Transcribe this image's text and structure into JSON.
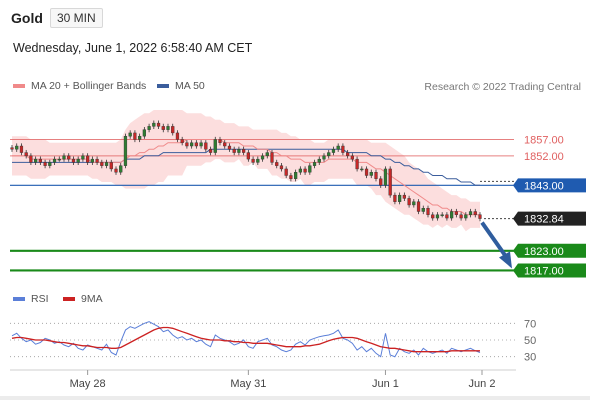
{
  "header": {
    "symbol": "Gold",
    "timeframe": "30 MIN",
    "timestamp": "Wednesday, June 1, 2022 6:58:40 AM CET"
  },
  "legend": {
    "ma20_label": "MA 20 + Bollinger Bands",
    "ma50_label": "MA 50",
    "ma20_color": "#f08a8a",
    "ma50_color": "#3b5d9c",
    "research": "Research © 2022 Trading Central"
  },
  "rsi_legend": {
    "rsi_label": "RSI",
    "ma9_label": "9MA",
    "rsi_color": "#5b7fd8",
    "ma9_color": "#cc2222"
  },
  "chart_data": [
    {
      "type": "candlestick",
      "title": "Gold",
      "x_labels": [
        "May 28",
        "May 31",
        "Jun 1",
        "Jun 2"
      ],
      "price_levels": [
        {
          "value": 1857.0,
          "label": "1857.00",
          "kind": "resistance",
          "color": "#e06060"
        },
        {
          "value": 1852.0,
          "label": "1852.00",
          "kind": "resistance",
          "color": "#e06060"
        },
        {
          "value": 1843.0,
          "label": "1843.00",
          "kind": "pivot",
          "color": "#1f5bb0"
        },
        {
          "value": 1832.84,
          "label": "1832.84",
          "kind": "last",
          "color": "#222222"
        },
        {
          "value": 1823.0,
          "label": "1823.00",
          "kind": "support",
          "color": "#1a8a1a"
        },
        {
          "value": 1817.0,
          "label": "1817.00",
          "kind": "support",
          "color": "#1a8a1a"
        }
      ],
      "close": [
        1854,
        1855,
        1853,
        1852,
        1850,
        1851,
        1850,
        1849,
        1850,
        1851,
        1851,
        1852,
        1851,
        1850,
        1851,
        1852,
        1850,
        1851,
        1850,
        1849,
        1850,
        1848,
        1847,
        1849,
        1858,
        1859,
        1857,
        1858,
        1860,
        1861,
        1862,
        1861,
        1860,
        1861,
        1859,
        1857,
        1856,
        1855,
        1856,
        1855,
        1856,
        1854,
        1853,
        1857,
        1856,
        1855,
        1854,
        1853,
        1854,
        1853,
        1851,
        1850,
        1851,
        1852,
        1853,
        1850,
        1849,
        1848,
        1846,
        1845,
        1847,
        1848,
        1847,
        1849,
        1850,
        1851,
        1852,
        1853,
        1854,
        1855,
        1853,
        1852,
        1851,
        1848,
        1848,
        1846,
        1847,
        1845,
        1843,
        1848,
        1840,
        1838,
        1840,
        1839,
        1837,
        1838,
        1835,
        1836,
        1834,
        1833,
        1834,
        1834,
        1833,
        1835,
        1834,
        1833,
        1834,
        1835,
        1834,
        1832.84
      ],
      "ma20": [
        1852,
        1852,
        1852,
        1852,
        1851,
        1851,
        1851,
        1851,
        1851,
        1851,
        1851,
        1851,
        1851,
        1851,
        1851,
        1851,
        1851,
        1850,
        1850,
        1850,
        1850,
        1850,
        1850,
        1850,
        1851,
        1852,
        1852,
        1853,
        1853,
        1854,
        1854,
        1855,
        1855,
        1856,
        1856,
        1856,
        1856,
        1857,
        1857,
        1857,
        1857,
        1857,
        1857,
        1857,
        1857,
        1856,
        1856,
        1856,
        1856,
        1855,
        1855,
        1855,
        1854,
        1854,
        1854,
        1853,
        1853,
        1852,
        1852,
        1851,
        1851,
        1851,
        1850,
        1850,
        1850,
        1850,
        1850,
        1851,
        1851,
        1851,
        1851,
        1851,
        1851,
        1850,
        1850,
        1850,
        1849,
        1848,
        1848,
        1847,
        1846,
        1845,
        1844,
        1843,
        1842,
        1841,
        1840,
        1839,
        1838,
        1837,
        1837,
        1836,
        1836,
        1835,
        1835,
        1835,
        1834,
        1834,
        1834,
        1834
      ],
      "ma50": [
        1850,
        1850,
        1850,
        1850,
        1850,
        1850,
        1850,
        1850,
        1850,
        1850,
        1850,
        1850,
        1850,
        1850,
        1850,
        1850,
        1850,
        1850,
        1850,
        1850,
        1850,
        1850,
        1850,
        1850,
        1851,
        1851,
        1851,
        1851,
        1852,
        1852,
        1852,
        1852,
        1853,
        1853,
        1853,
        1853,
        1853,
        1853,
        1853,
        1853,
        1853,
        1853,
        1854,
        1854,
        1854,
        1854,
        1854,
        1854,
        1854,
        1854,
        1854,
        1854,
        1854,
        1854,
        1854,
        1854,
        1854,
        1854,
        1854,
        1854,
        1854,
        1854,
        1854,
        1854,
        1854,
        1854,
        1854,
        1854,
        1854,
        1854,
        1854,
        1853,
        1853,
        1853,
        1853,
        1853,
        1852,
        1852,
        1852,
        1851,
        1851,
        1850,
        1850,
        1849,
        1849,
        1848,
        1848,
        1847,
        1847,
        1846,
        1846,
        1846,
        1845,
        1845,
        1845,
        1844,
        1844,
        1844,
        1843,
        1843
      ],
      "bollinger_upper": [
        1858,
        1858,
        1858,
        1858,
        1857,
        1857,
        1857,
        1857,
        1856,
        1856,
        1856,
        1856,
        1856,
        1856,
        1856,
        1856,
        1856,
        1856,
        1856,
        1856,
        1856,
        1856,
        1856,
        1857,
        1860,
        1862,
        1863,
        1864,
        1865,
        1865,
        1866,
        1866,
        1866,
        1866,
        1866,
        1866,
        1866,
        1865,
        1865,
        1865,
        1865,
        1864,
        1864,
        1863,
        1863,
        1862,
        1862,
        1862,
        1861,
        1861,
        1861,
        1860,
        1860,
        1860,
        1860,
        1860,
        1860,
        1859,
        1859,
        1858,
        1858,
        1857,
        1857,
        1857,
        1856,
        1856,
        1856,
        1857,
        1857,
        1857,
        1857,
        1857,
        1857,
        1857,
        1857,
        1857,
        1856,
        1856,
        1856,
        1856,
        1855,
        1854,
        1853,
        1852,
        1850,
        1849,
        1848,
        1847,
        1845,
        1844,
        1843,
        1842,
        1841,
        1840,
        1840,
        1839,
        1839,
        1838,
        1838,
        1838
      ],
      "bollinger_lower": [
        1846,
        1846,
        1846,
        1846,
        1845,
        1845,
        1845,
        1845,
        1846,
        1846,
        1846,
        1846,
        1846,
        1846,
        1846,
        1846,
        1846,
        1845,
        1845,
        1844,
        1844,
        1844,
        1843,
        1843,
        1842,
        1842,
        1842,
        1842,
        1842,
        1843,
        1843,
        1844,
        1844,
        1846,
        1846,
        1846,
        1846,
        1849,
        1849,
        1849,
        1849,
        1850,
        1850,
        1851,
        1851,
        1850,
        1850,
        1850,
        1851,
        1849,
        1849,
        1850,
        1848,
        1848,
        1848,
        1846,
        1846,
        1845,
        1845,
        1844,
        1844,
        1845,
        1843,
        1843,
        1844,
        1844,
        1844,
        1845,
        1845,
        1845,
        1845,
        1845,
        1845,
        1843,
        1843,
        1843,
        1842,
        1840,
        1840,
        1838,
        1837,
        1836,
        1835,
        1834,
        1834,
        1833,
        1832,
        1831,
        1831,
        1830,
        1831,
        1830,
        1831,
        1830,
        1830,
        1831,
        1829,
        1830,
        1830,
        1830
      ],
      "forecast_arrow": {
        "from": 1832.84,
        "to": 1817.0
      },
      "grid": false
    },
    {
      "type": "line",
      "title": "RSI",
      "ylim": [
        20,
        80
      ],
      "y_ticks": [
        "70",
        "50",
        "30"
      ],
      "series": [
        {
          "name": "RSI",
          "values": [
            55,
            58,
            52,
            48,
            50,
            45,
            47,
            52,
            50,
            46,
            48,
            44,
            42,
            46,
            40,
            38,
            44,
            42,
            40,
            38,
            45,
            35,
            32,
            48,
            62,
            66,
            64,
            67,
            70,
            72,
            69,
            66,
            60,
            62,
            56,
            52,
            54,
            50,
            52,
            48,
            50,
            45,
            42,
            56,
            52,
            50,
            48,
            44,
            46,
            50,
            42,
            40,
            48,
            50,
            52,
            44,
            42,
            38,
            36,
            38,
            45,
            48,
            44,
            50,
            52,
            54,
            55,
            56,
            58,
            62,
            52,
            50,
            46,
            38,
            42,
            36,
            40,
            34,
            30,
            58,
            32,
            30,
            40,
            36,
            34,
            38,
            32,
            40,
            36,
            34,
            36,
            38,
            34,
            40,
            38,
            36,
            38,
            40,
            37,
            35
          ]
        },
        {
          "name": "9MA",
          "values": [
            52,
            53,
            53,
            52,
            51,
            50,
            50,
            50,
            49,
            48,
            47,
            47,
            46,
            45,
            44,
            43,
            43,
            42,
            41,
            41,
            41,
            40,
            40,
            41,
            44,
            47,
            50,
            53,
            56,
            59,
            62,
            64,
            65,
            65,
            64,
            62,
            60,
            58,
            56,
            54,
            52,
            51,
            50,
            50,
            50,
            49,
            49,
            48,
            48,
            47,
            47,
            46,
            46,
            46,
            46,
            45,
            44,
            43,
            42,
            42,
            42,
            42,
            43,
            43,
            44,
            45,
            47,
            49,
            51,
            52,
            53,
            53,
            53,
            52,
            50,
            48,
            46,
            44,
            42,
            41,
            40,
            40,
            39,
            38,
            37,
            36,
            36,
            36,
            36,
            36,
            36,
            36,
            36,
            37,
            37,
            37,
            37,
            37,
            37,
            37
          ]
        }
      ]
    }
  ]
}
